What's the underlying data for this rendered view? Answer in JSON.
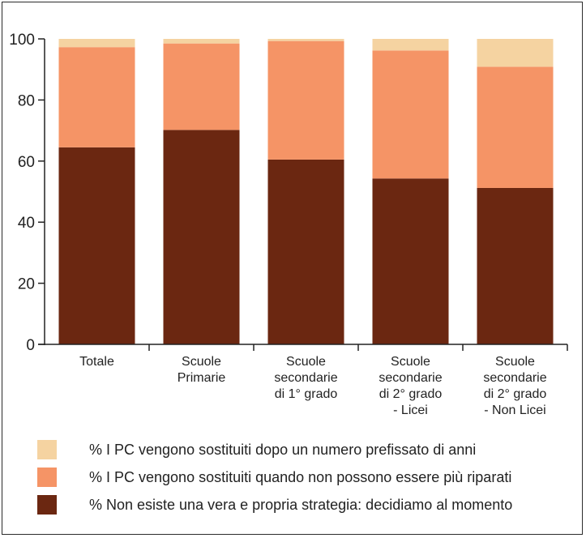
{
  "chart_data": {
    "type": "bar",
    "stacked": true,
    "categories": [
      [
        "Totale"
      ],
      [
        "Scuole",
        "Primarie"
      ],
      [
        "Scuole",
        "secondarie",
        "di 1° grado"
      ],
      [
        "Scuole",
        "secondarie",
        "di 2° grado",
        "- Licei"
      ],
      [
        "Scuole",
        "secondarie",
        "di 2° grado",
        "- Non Licei"
      ]
    ],
    "series": [
      {
        "name": "% Non esiste una vera e propria strategia: decidiamo al momento",
        "color": "#6b2711",
        "values": [
          64.5,
          70.2,
          60.5,
          54.3,
          51.2
        ]
      },
      {
        "name": "% I PC vengono sostituiti quando non possono essere più riparati",
        "color": "#f59466",
        "values": [
          32.8,
          28.3,
          38.8,
          41.9,
          39.7
        ]
      },
      {
        "name": "% I PC vengono sostituiti dopo un numero prefissato di anni",
        "color": "#f5d3a1",
        "values": [
          2.7,
          1.5,
          0.7,
          3.8,
          9.1
        ]
      }
    ],
    "y_ticks": [
      0,
      20,
      40,
      60,
      80,
      100
    ],
    "ylim": [
      0,
      100
    ],
    "grid": false,
    "legend_position": "bottom-left"
  },
  "legend": [
    {
      "label": "% I PC vengono sostituiti dopo un numero prefissato di anni",
      "color": "#f5d3a1"
    },
    {
      "label": "% I PC vengono sostituiti quando non possono essere più riparati",
      "color": "#f59466"
    },
    {
      "label": "% Non esiste una vera e propria strategia: decidiamo al momento",
      "color": "#6b2711"
    }
  ]
}
